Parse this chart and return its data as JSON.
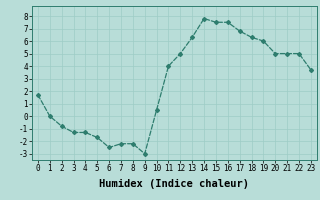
{
  "x": [
    0,
    1,
    2,
    3,
    4,
    5,
    6,
    7,
    8,
    9,
    10,
    11,
    12,
    13,
    14,
    15,
    16,
    17,
    18,
    19,
    20,
    21,
    22,
    23
  ],
  "y": [
    1.7,
    0.0,
    -0.8,
    -1.3,
    -1.3,
    -1.7,
    -2.5,
    -2.2,
    -2.2,
    -3.0,
    0.5,
    4.0,
    5.0,
    6.3,
    7.8,
    7.5,
    7.5,
    6.8,
    6.3,
    6.0,
    5.0,
    5.0,
    5.0,
    3.7
  ],
  "line_color": "#2e7d6e",
  "bg_color": "#b8ddd8",
  "grid_color": "#9eccc6",
  "xlabel": "Humidex (Indice chaleur)",
  "ylim": [
    -3.5,
    8.8
  ],
  "xlim": [
    -0.5,
    23.5
  ],
  "yticks": [
    -3,
    -2,
    -1,
    0,
    1,
    2,
    3,
    4,
    5,
    6,
    7,
    8
  ],
  "xticks": [
    0,
    1,
    2,
    3,
    4,
    5,
    6,
    7,
    8,
    9,
    10,
    11,
    12,
    13,
    14,
    15,
    16,
    17,
    18,
    19,
    20,
    21,
    22,
    23
  ],
  "tick_label_fontsize": 5.5,
  "xlabel_fontsize": 7.5
}
